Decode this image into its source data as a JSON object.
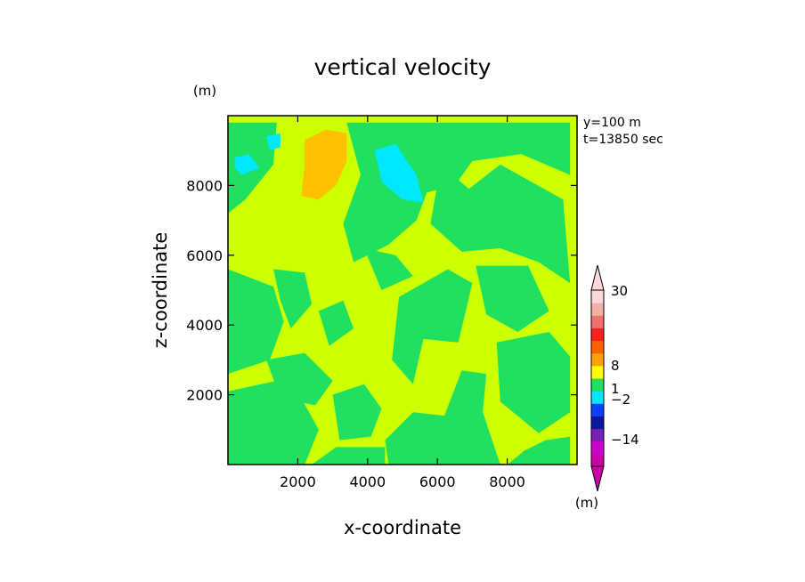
{
  "chart_data": {
    "type": "heatmap",
    "title": "vertical velocity",
    "xlabel": "x-coordinate",
    "ylabel": "z-coordinate",
    "x_unit": "(m)",
    "y_unit": "(m)",
    "xlim": [
      0,
      10000
    ],
    "ylim": [
      0,
      10000
    ],
    "x_ticks": [
      2000,
      4000,
      6000,
      8000
    ],
    "y_ticks": [
      2000,
      4000,
      6000,
      8000
    ],
    "annotations": [
      "y=100  m",
      "t=13850 sec"
    ],
    "colorbar": {
      "unit": "(m)",
      "tick_labels": [
        "30",
        "8",
        "1",
        "−2",
        "−14"
      ],
      "tick_values": [
        30,
        8,
        1,
        -2,
        -14
      ],
      "levels": [
        {
          "color": "#cc00aa"
        },
        {
          "color": "#cc00cc"
        },
        {
          "color": "#7a1fb5"
        },
        {
          "color": "#0a1aa0"
        },
        {
          "color": "#1040ff"
        },
        {
          "color": "#00e8ff"
        },
        {
          "color": "#20e060"
        },
        {
          "color": "#ffff00"
        },
        {
          "color": "#ffa000"
        },
        {
          "color": "#ff6000"
        },
        {
          "color": "#ff2020"
        },
        {
          "color": "#f07070"
        },
        {
          "color": "#f4b0a8"
        },
        {
          "color": "#f8d8d8"
        }
      ]
    },
    "fields": {
      "background": {
        "color": "#ccff00"
      },
      "regions": [
        {
          "level": "green",
          "color": "#20e060",
          "points": [
            [
              0,
              9800
            ],
            [
              1400,
              9800
            ],
            [
              1300,
              8600
            ],
            [
              500,
              7600
            ],
            [
              0,
              7200
            ]
          ]
        },
        {
          "level": "green",
          "color": "#20e060",
          "points": [
            [
              3400,
              9800
            ],
            [
              9800,
              9800
            ],
            [
              9800,
              8300
            ],
            [
              8400,
              8900
            ],
            [
              7000,
              8700
            ],
            [
              6500,
              8000
            ],
            [
              5700,
              7800
            ],
            [
              5400,
              7000
            ],
            [
              4600,
              6300
            ],
            [
              3600,
              5800
            ],
            [
              3300,
              6900
            ],
            [
              3800,
              8300
            ]
          ]
        },
        {
          "level": "green",
          "color": "#20e060",
          "points": [
            [
              6100,
              8600
            ],
            [
              6900,
              7900
            ],
            [
              7800,
              8600
            ],
            [
              9600,
              7600
            ],
            [
              9800,
              5200
            ],
            [
              8900,
              5800
            ],
            [
              7800,
              6200
            ],
            [
              6700,
              6100
            ],
            [
              5800,
              6900
            ]
          ]
        },
        {
          "level": "green",
          "color": "#20e060",
          "points": [
            [
              0,
              5600
            ],
            [
              1300,
              5100
            ],
            [
              1600,
              4100
            ],
            [
              1200,
              3000
            ],
            [
              0,
              2600
            ]
          ]
        },
        {
          "level": "green",
          "color": "#20e060",
          "points": [
            [
              1300,
              5600
            ],
            [
              2200,
              5500
            ],
            [
              2400,
              4600
            ],
            [
              1800,
              3900
            ],
            [
              1500,
              4700
            ]
          ]
        },
        {
          "level": "green",
          "color": "#20e060",
          "points": [
            [
              2600,
              4400
            ],
            [
              3300,
              4700
            ],
            [
              3600,
              3900
            ],
            [
              2900,
              3400
            ]
          ]
        },
        {
          "level": "green",
          "color": "#20e060",
          "points": [
            [
              3900,
              6200
            ],
            [
              4800,
              6000
            ],
            [
              5300,
              5400
            ],
            [
              4400,
              5000
            ]
          ]
        },
        {
          "level": "green",
          "color": "#20e060",
          "points": [
            [
              4900,
              4800
            ],
            [
              6300,
              5600
            ],
            [
              7000,
              5200
            ],
            [
              6600,
              3500
            ],
            [
              5600,
              3600
            ],
            [
              5300,
              2300
            ],
            [
              4700,
              3000
            ]
          ]
        },
        {
          "level": "green",
          "color": "#20e060",
          "points": [
            [
              7100,
              5700
            ],
            [
              8600,
              5700
            ],
            [
              9200,
              4400
            ],
            [
              8300,
              3800
            ],
            [
              7400,
              4300
            ]
          ]
        },
        {
          "level": "green",
          "color": "#20e060",
          "points": [
            [
              7700,
              3500
            ],
            [
              9200,
              3800
            ],
            [
              9800,
              3100
            ],
            [
              9800,
              1500
            ],
            [
              8900,
              900
            ],
            [
              7800,
              1800
            ]
          ]
        },
        {
          "level": "green",
          "color": "#20e060",
          "points": [
            [
              0,
              2100
            ],
            [
              1400,
              2400
            ],
            [
              2100,
              1900
            ],
            [
              2600,
              1000
            ],
            [
              2200,
              0
            ],
            [
              0,
              0
            ]
          ]
        },
        {
          "level": "green",
          "color": "#20e060",
          "points": [
            [
              1100,
              3000
            ],
            [
              2200,
              3200
            ],
            [
              3000,
              2400
            ],
            [
              2500,
              1700
            ],
            [
              1500,
              1900
            ]
          ]
        },
        {
          "level": "green",
          "color": "#20e060",
          "points": [
            [
              3000,
              2000
            ],
            [
              3900,
              2300
            ],
            [
              4400,
              1600
            ],
            [
              4100,
              800
            ],
            [
              3200,
              700
            ]
          ]
        },
        {
          "level": "green",
          "color": "#20e060",
          "points": [
            [
              4500,
              700
            ],
            [
              5300,
              1500
            ],
            [
              6200,
              1400
            ],
            [
              6700,
              2700
            ],
            [
              7400,
              2600
            ],
            [
              7300,
              1500
            ],
            [
              7800,
              0
            ],
            [
              4600,
              0
            ]
          ]
        },
        {
          "level": "green",
          "color": "#20e060",
          "points": [
            [
              2400,
              0
            ],
            [
              3100,
              500
            ],
            [
              4500,
              500
            ],
            [
              4500,
              0
            ]
          ]
        },
        {
          "level": "green",
          "color": "#20e060",
          "points": [
            [
              8000,
              0
            ],
            [
              9800,
              0
            ],
            [
              9800,
              800
            ],
            [
              9100,
              700
            ],
            [
              8500,
              400
            ]
          ]
        },
        {
          "level": "orange",
          "color": "#ffc000",
          "points": [
            [
              2200,
              9300
            ],
            [
              2800,
              9600
            ],
            [
              3400,
              9500
            ],
            [
              3400,
              8700
            ],
            [
              3100,
              8000
            ],
            [
              2600,
              7600
            ],
            [
              2100,
              7700
            ],
            [
              2200,
              8600
            ]
          ]
        },
        {
          "level": "cyan",
          "color": "#00e8ff",
          "points": [
            [
              4200,
              9000
            ],
            [
              4800,
              9200
            ],
            [
              5400,
              8300
            ],
            [
              5600,
              7500
            ],
            [
              5000,
              7600
            ],
            [
              4400,
              8100
            ],
            [
              4300,
              8600
            ]
          ]
        },
        {
          "level": "cyan",
          "color": "#00e8ff",
          "points": [
            [
              200,
              8800
            ],
            [
              600,
              8900
            ],
            [
              900,
              8500
            ],
            [
              400,
              8300
            ],
            [
              200,
              8500
            ]
          ]
        },
        {
          "level": "cyan",
          "color": "#00e8ff",
          "points": [
            [
              1100,
              9400
            ],
            [
              1500,
              9500
            ],
            [
              1500,
              9100
            ],
            [
              1200,
              9000
            ]
          ]
        }
      ]
    }
  }
}
